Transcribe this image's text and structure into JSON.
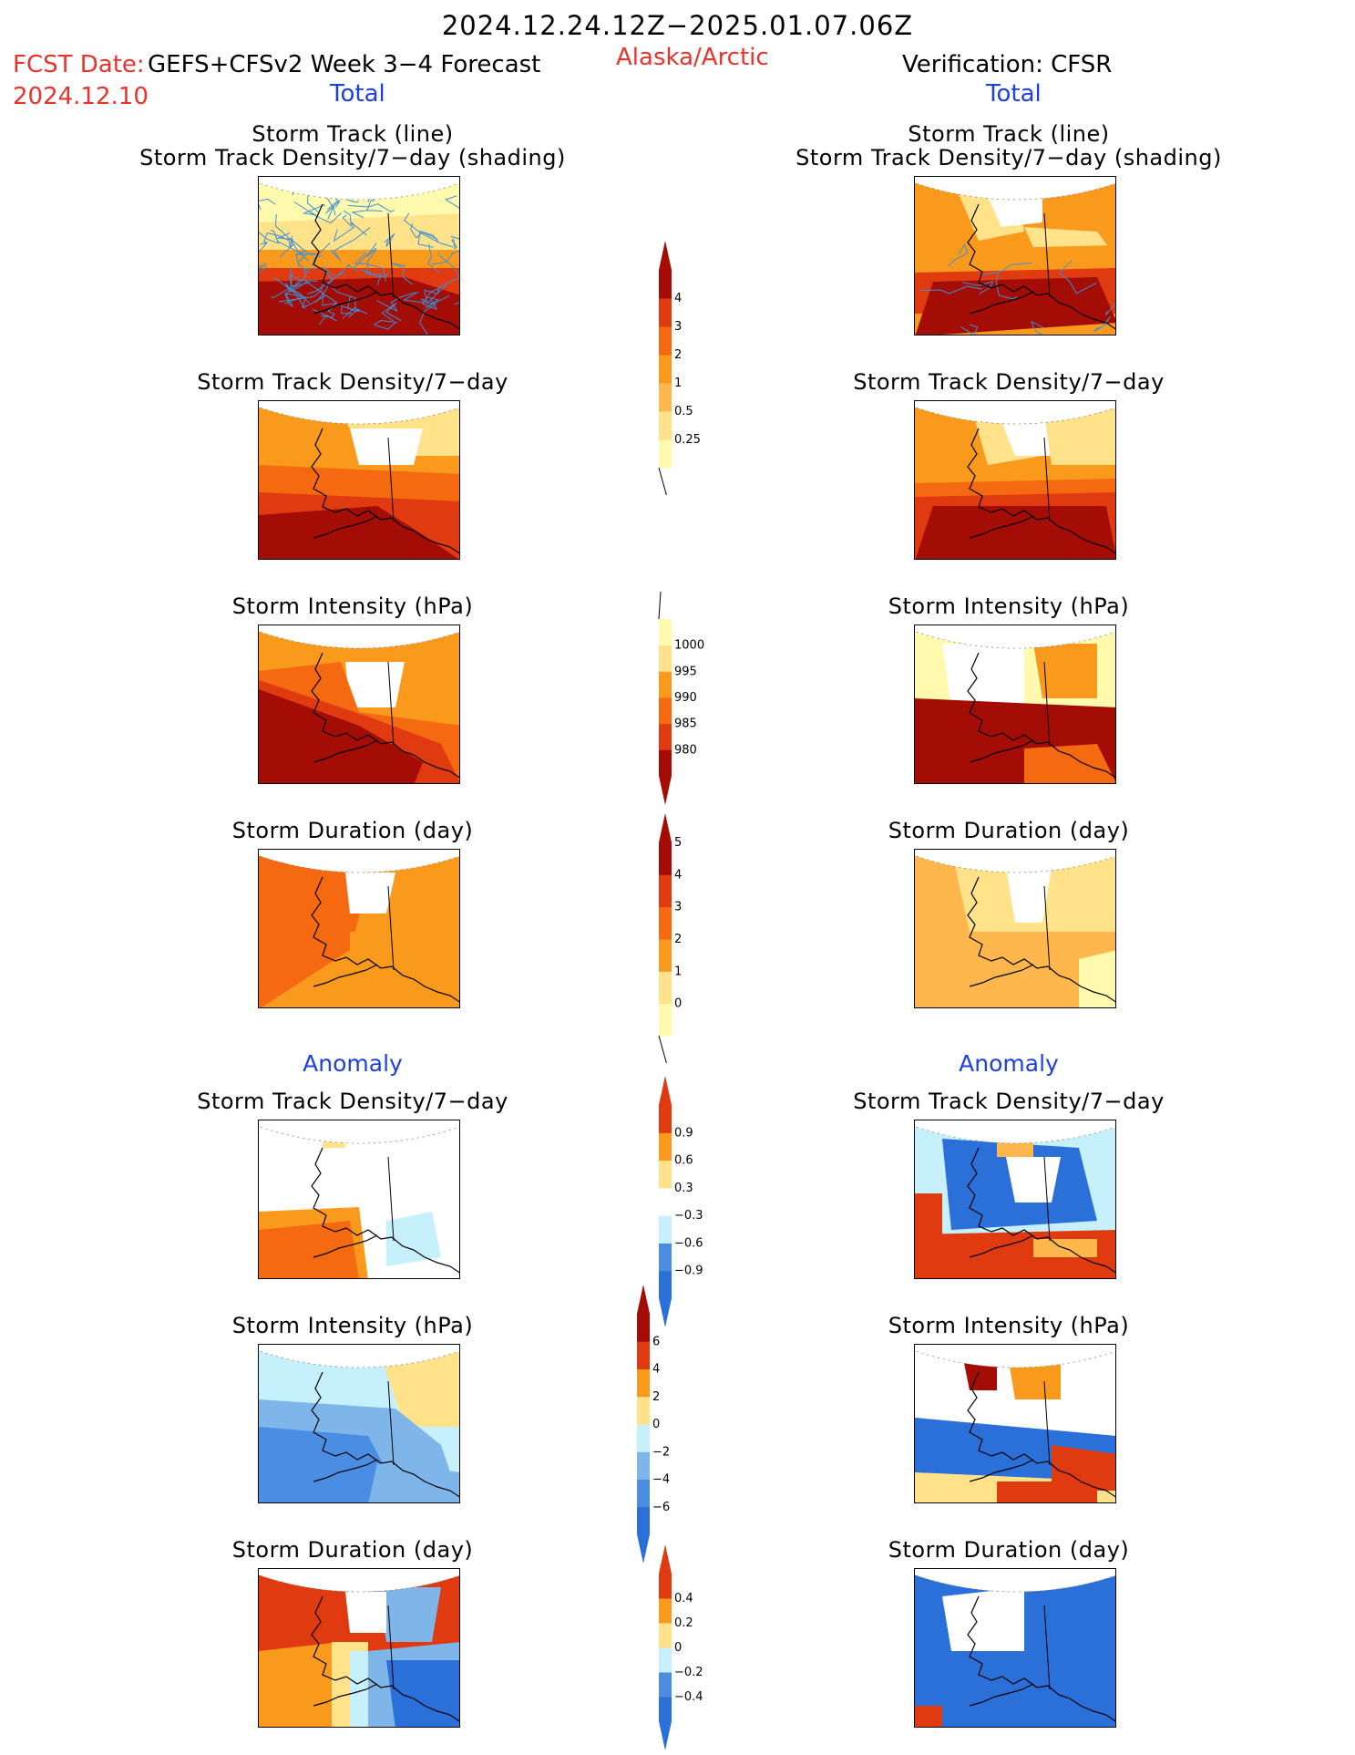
{
  "header": {
    "title": "2024.12.24.12Z−2025.01.07.06Z",
    "fcst_label": "FCST Date:",
    "product": "GEFS+CFSv2 Week 3−4 Forecast",
    "region": "Alaska/Arctic",
    "verification": "Verification: CFSR",
    "fcst_date": "2024.12.10",
    "left_total": "Total",
    "right_total": "Total",
    "left_anomaly": "Anomaly",
    "right_anomaly": "Anomaly"
  },
  "panel_titles": {
    "track_line": "Storm Track (line)",
    "track_shading": "Storm Track Density/7−day (shading)",
    "density": "Storm Track Density/7−day",
    "intensity": "Storm Intensity (hPa)",
    "duration": "Storm Duration (day)"
  },
  "colorbars": {
    "density_total": [
      "0.25",
      "0.5",
      "1",
      "2",
      "3",
      "4"
    ],
    "intensity_total": [
      "1000",
      "995",
      "990",
      "985",
      "980"
    ],
    "duration_total": [
      "0",
      "1",
      "2",
      "3",
      "4",
      "5"
    ],
    "density_anomaly": [
      "0.9",
      "0.6",
      "0.3",
      "−0.3",
      "−0.6",
      "−0.9"
    ],
    "intensity_anomaly": [
      "6",
      "4",
      "2",
      "0",
      "−2",
      "−4",
      "−6"
    ],
    "duration_anomaly": [
      "0.4",
      "0.2",
      "0",
      "−0.2",
      "−0.4"
    ]
  },
  "colors": {
    "warm": [
      "#fffaae",
      "#ffe28a",
      "#fdb74d",
      "#f99a1c",
      "#f56a10",
      "#e03a10",
      "#a30d06"
    ],
    "cool": [
      "#c6f0fb",
      "#a6dcf3",
      "#7eb6ea",
      "#4a8ee4",
      "#2b6fd8"
    ],
    "track_line": "#3d8fd6"
  }
}
